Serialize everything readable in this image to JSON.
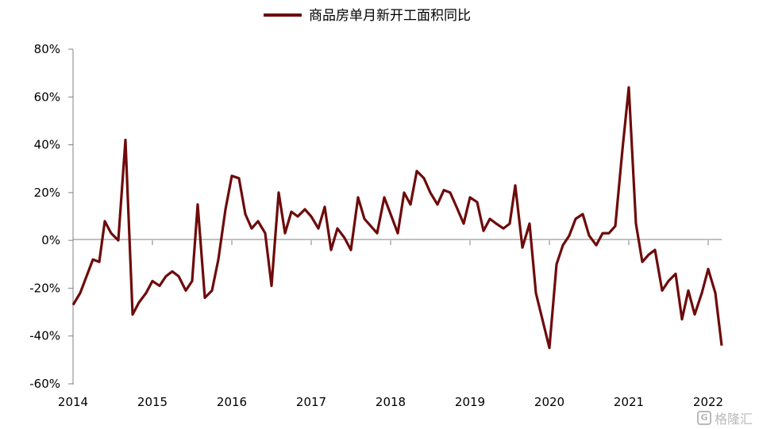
{
  "chart_data": {
    "type": "line",
    "legend": {
      "label": "商品房单月新开工面积同比",
      "position": "top-center"
    },
    "series": [
      {
        "name": "商品房单月新开工面积同比",
        "color": "#6e0b0b",
        "points": [
          [
            2014.0,
            -27
          ],
          [
            2014.09,
            -22
          ],
          [
            2014.17,
            -15
          ],
          [
            2014.25,
            -8
          ],
          [
            2014.33,
            -9
          ],
          [
            2014.4,
            8
          ],
          [
            2014.48,
            3
          ],
          [
            2014.57,
            0
          ],
          [
            2014.66,
            42
          ],
          [
            2014.75,
            -31
          ],
          [
            2014.83,
            -26
          ],
          [
            2014.92,
            -22
          ],
          [
            2015.0,
            -17
          ],
          [
            2015.09,
            -19
          ],
          [
            2015.17,
            -15
          ],
          [
            2015.25,
            -13
          ],
          [
            2015.33,
            -15
          ],
          [
            2015.42,
            -21
          ],
          [
            2015.5,
            -17
          ],
          [
            2015.57,
            15
          ],
          [
            2015.66,
            -24
          ],
          [
            2015.75,
            -21
          ],
          [
            2015.83,
            -8
          ],
          [
            2015.92,
            13
          ],
          [
            2016.0,
            27
          ],
          [
            2016.09,
            26
          ],
          [
            2016.17,
            11
          ],
          [
            2016.25,
            5
          ],
          [
            2016.33,
            8
          ],
          [
            2016.42,
            3
          ],
          [
            2016.5,
            -19
          ],
          [
            2016.59,
            20
          ],
          [
            2016.67,
            3
          ],
          [
            2016.75,
            12
          ],
          [
            2016.83,
            10
          ],
          [
            2016.92,
            13
          ],
          [
            2017.0,
            10
          ],
          [
            2017.09,
            5
          ],
          [
            2017.17,
            14
          ],
          [
            2017.25,
            -4
          ],
          [
            2017.33,
            5
          ],
          [
            2017.42,
            1
          ],
          [
            2017.5,
            -4
          ],
          [
            2017.59,
            18
          ],
          [
            2017.67,
            9
          ],
          [
            2017.75,
            6
          ],
          [
            2017.83,
            3
          ],
          [
            2017.92,
            18
          ],
          [
            2018.0,
            11
          ],
          [
            2018.09,
            3
          ],
          [
            2018.17,
            20
          ],
          [
            2018.25,
            15
          ],
          [
            2018.33,
            29
          ],
          [
            2018.42,
            26
          ],
          [
            2018.5,
            20
          ],
          [
            2018.59,
            15
          ],
          [
            2018.67,
            21
          ],
          [
            2018.75,
            20
          ],
          [
            2018.83,
            14
          ],
          [
            2018.92,
            7
          ],
          [
            2019.0,
            18
          ],
          [
            2019.09,
            16
          ],
          [
            2019.17,
            4
          ],
          [
            2019.25,
            9
          ],
          [
            2019.33,
            7
          ],
          [
            2019.42,
            5
          ],
          [
            2019.5,
            7
          ],
          [
            2019.57,
            23
          ],
          [
            2019.66,
            -3
          ],
          [
            2019.75,
            7
          ],
          [
            2019.83,
            -22
          ],
          [
            2020.0,
            -45
          ],
          [
            2020.09,
            -10
          ],
          [
            2020.17,
            -2
          ],
          [
            2020.25,
            2
          ],
          [
            2020.33,
            9
          ],
          [
            2020.42,
            11
          ],
          [
            2020.5,
            2
          ],
          [
            2020.59,
            -2
          ],
          [
            2020.67,
            3
          ],
          [
            2020.75,
            3
          ],
          [
            2020.83,
            6
          ],
          [
            2020.92,
            38
          ],
          [
            2021.0,
            64
          ],
          [
            2021.09,
            7
          ],
          [
            2021.17,
            -9
          ],
          [
            2021.25,
            -6
          ],
          [
            2021.33,
            -4
          ],
          [
            2021.42,
            -21
          ],
          [
            2021.5,
            -17
          ],
          [
            2021.59,
            -14
          ],
          [
            2021.67,
            -33
          ],
          [
            2021.75,
            -21
          ],
          [
            2021.83,
            -31
          ],
          [
            2021.92,
            -22
          ],
          [
            2022.0,
            -12
          ],
          [
            2022.09,
            -22
          ],
          [
            2022.17,
            -44
          ]
        ]
      }
    ],
    "x_ticks": [
      "2014",
      "2015",
      "2016",
      "2017",
      "2018",
      "2019",
      "2020",
      "2021",
      "2022"
    ],
    "y_ticks": [
      "80%",
      "60%",
      "40%",
      "20%",
      "0%",
      "-20%",
      "-40%",
      "-60%"
    ],
    "xlim": [
      2014,
      2022.17
    ],
    "ylim": [
      -60,
      80
    ],
    "grid": false
  },
  "watermark": {
    "badge": "G",
    "text": "格隆汇"
  }
}
